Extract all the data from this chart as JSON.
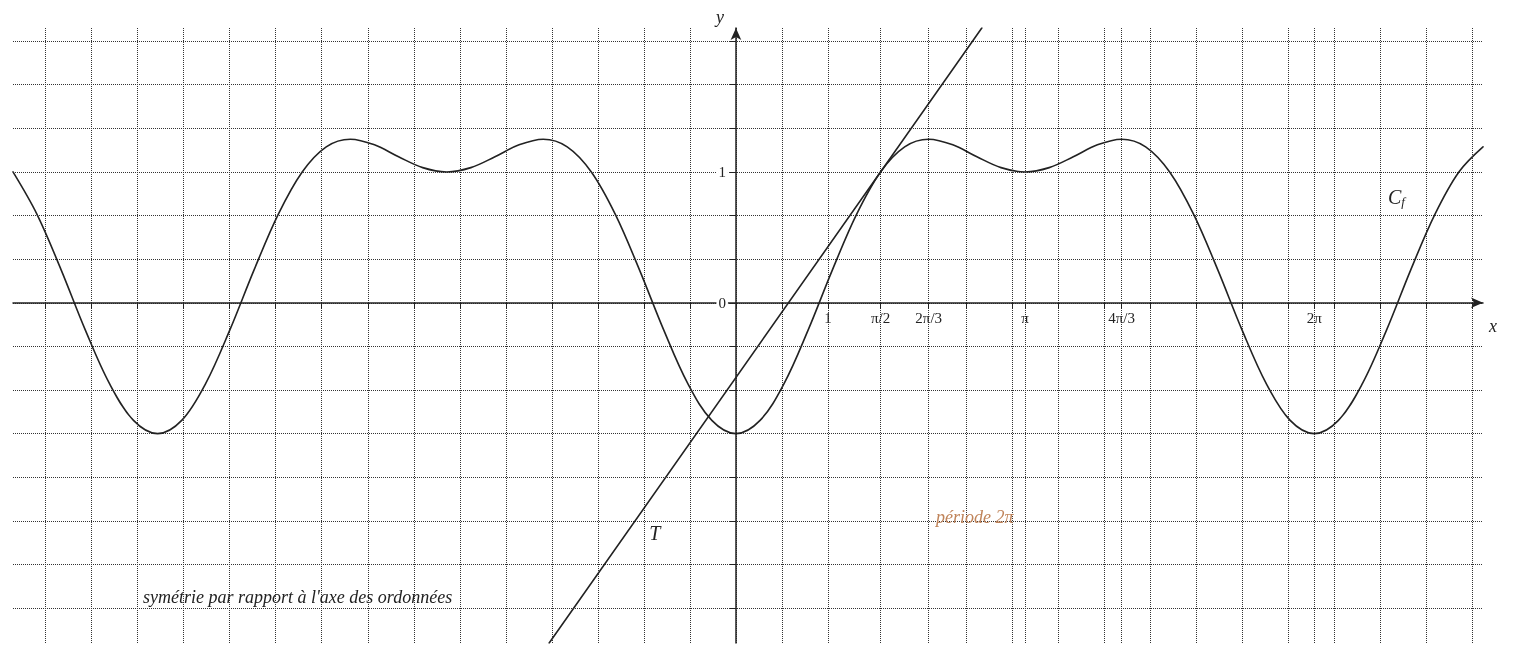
{
  "chart_data": {
    "type": "line",
    "xlabel": "x",
    "ylabel": "y",
    "xlim": [
      -7.854,
      8.116
    ],
    "ylim": [
      -2.6,
      2.1
    ],
    "xticks": [
      {
        "value": -7.5,
        "label": null
      },
      {
        "value": -7,
        "label": null
      },
      {
        "value": -6.5,
        "label": null
      },
      {
        "value": -6,
        "label": null
      },
      {
        "value": -5.5,
        "label": null
      },
      {
        "value": -5,
        "label": null
      },
      {
        "value": -4.5,
        "label": null
      },
      {
        "value": -4,
        "label": null
      },
      {
        "value": -3.5,
        "label": null
      },
      {
        "value": -3,
        "label": null
      },
      {
        "value": -2.5,
        "label": null
      },
      {
        "value": -2,
        "label": null
      },
      {
        "value": -1.5,
        "label": null
      },
      {
        "value": -1,
        "label": null
      },
      {
        "value": -0.5,
        "label": null
      },
      {
        "value": 0,
        "label": null
      },
      {
        "value": 0.5,
        "label": null
      },
      {
        "value": 1,
        "label": "1"
      },
      {
        "value": 1.571,
        "label": "π/2"
      },
      {
        "value": 2.094,
        "label": "2π/3"
      },
      {
        "value": 2.5,
        "label": null
      },
      {
        "value": 3,
        "label": null
      },
      {
        "value": 3.142,
        "label": "π"
      },
      {
        "value": 3.5,
        "label": null
      },
      {
        "value": 4,
        "label": null
      },
      {
        "value": 4.189,
        "label": "4π/3"
      },
      {
        "value": 4.5,
        "label": null
      },
      {
        "value": 5,
        "label": null
      },
      {
        "value": 5.5,
        "label": null
      },
      {
        "value": 6,
        "label": null
      },
      {
        "value": 6.283,
        "label": "2π"
      },
      {
        "value": 6.5,
        "label": null
      },
      {
        "value": 7,
        "label": null
      },
      {
        "value": 7.5,
        "label": null
      },
      {
        "value": 8,
        "label": null
      }
    ],
    "yticks": [
      {
        "value": -2.333,
        "label": null
      },
      {
        "value": -2,
        "label": null
      },
      {
        "value": -1.667,
        "label": null
      },
      {
        "value": -1.333,
        "label": null
      },
      {
        "value": -1,
        "label": null
      },
      {
        "value": -0.667,
        "label": null
      },
      {
        "value": -0.333,
        "label": null
      },
      {
        "value": 0,
        "label": "0"
      },
      {
        "value": 0.333,
        "label": null
      },
      {
        "value": 0.667,
        "label": null
      },
      {
        "value": 1,
        "label": "1"
      },
      {
        "value": 1.333,
        "label": null
      },
      {
        "value": 1.667,
        "label": null
      },
      {
        "value": 2,
        "label": null
      }
    ],
    "grid": true,
    "marker": "none",
    "line_style": "solid",
    "series": [
      {
        "name": "C$_{f}$",
        "color": "#222222",
        "x": [
          -7.854,
          -7.592,
          -7.33,
          -7.069,
          -6.807,
          -6.545,
          -6.283,
          -6.021,
          -5.76,
          -5.498,
          -5.236,
          -4.974,
          -4.712,
          -4.451,
          -4.189,
          -3.927,
          -3.665,
          -3.403,
          -3.142,
          -2.88,
          -2.618,
          -2.356,
          -2.094,
          -1.833,
          -1.571,
          -1.309,
          -1.047,
          -0.785,
          -0.524,
          -0.262,
          0,
          0.262,
          0.524,
          0.785,
          1.047,
          1.309,
          1.571,
          1.833,
          2.094,
          2.356,
          2.618,
          2.88,
          3.142,
          3.403,
          3.665,
          3.927,
          4.189,
          4.451,
          4.712,
          4.974,
          5.236,
          5.498,
          5.76,
          6.021,
          6.283,
          6.545,
          6.807,
          7.069,
          7.33,
          7.592,
          7.854,
          8.116
        ],
        "values": [
          1,
          0.674,
          0.25,
          -0.207,
          -0.616,
          -0.899,
          -1,
          -0.899,
          -0.616,
          -0.207,
          0.25,
          0.674,
          1,
          1.192,
          1.25,
          1.207,
          1.116,
          1.033,
          1,
          1.033,
          1.116,
          1.207,
          1.25,
          1.192,
          1,
          0.674,
          0.25,
          -0.207,
          -0.616,
          -0.899,
          -1,
          -0.899,
          -0.616,
          -0.207,
          0.25,
          0.674,
          1,
          1.192,
          1.25,
          1.207,
          1.116,
          1.033,
          1,
          1.033,
          1.116,
          1.207,
          1.25,
          1.192,
          1,
          0.674,
          0.25,
          -0.207,
          -0.616,
          -0.899,
          -1,
          -0.899,
          -0.616,
          -0.207,
          0.25,
          0.674,
          1,
          1.192
        ]
      },
      {
        "name": "T",
        "color": "#222222",
        "x": [
          -2.029,
          2.671
        ],
        "values": [
          -2.6,
          2.1
        ]
      }
    ],
    "annotations": [
      "période 2π",
      "symétrie par rapport à l'axe des ordonnées"
    ]
  }
}
